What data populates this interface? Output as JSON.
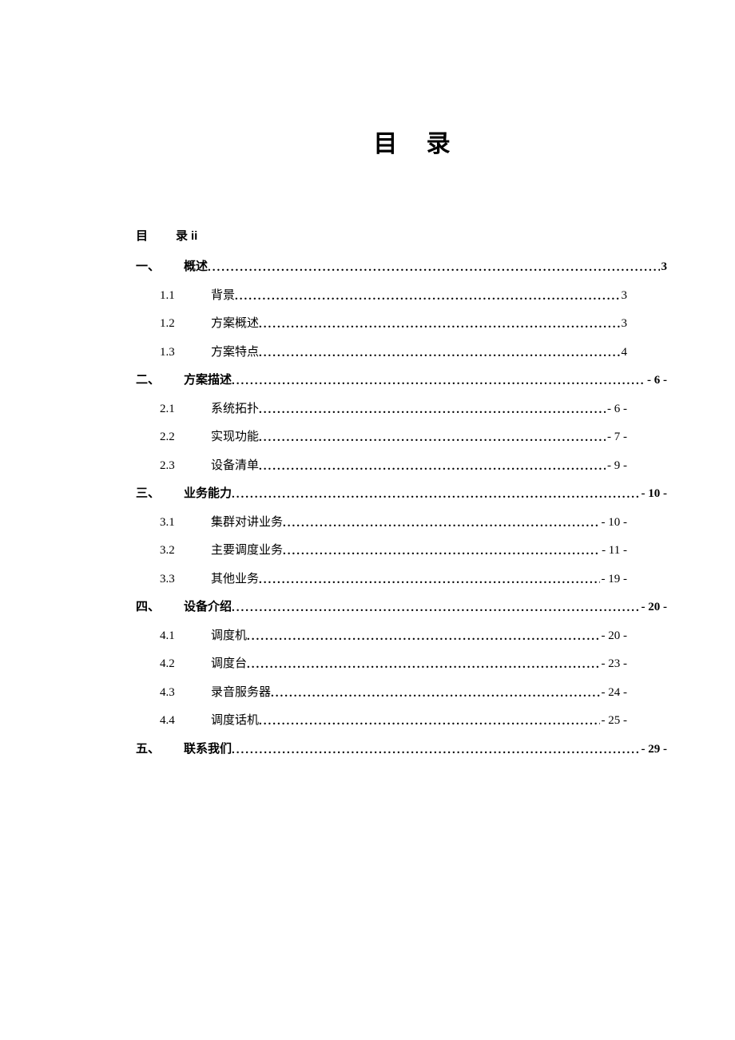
{
  "colors": {
    "background": "#ffffff",
    "text": "#000000"
  },
  "title": "目 录",
  "self_entry": {
    "label": "目　录",
    "page": "ii"
  },
  "toc": [
    {
      "level": 1,
      "num": "一、",
      "text": "概述",
      "page": "3"
    },
    {
      "level": 2,
      "num": "1.1",
      "text": "背景",
      "page": "3"
    },
    {
      "level": 2,
      "num": "1.2",
      "text": "方案概述",
      "page": "3"
    },
    {
      "level": 2,
      "num": "1.3",
      "text": "方案特点",
      "page": "4"
    },
    {
      "level": 1,
      "num": "二、",
      "text": "方案描述",
      "page": "- 6 -"
    },
    {
      "level": 2,
      "num": "2.1",
      "text": "系统拓扑",
      "page": "- 6 -"
    },
    {
      "level": 2,
      "num": "2.2",
      "text": "实现功能",
      "page": "- 7 -"
    },
    {
      "level": 2,
      "num": "2.3",
      "text": "设备清单",
      "page": "- 9 -"
    },
    {
      "level": 1,
      "num": "三、",
      "text": "业务能力",
      "page": "- 10 -"
    },
    {
      "level": 2,
      "num": "3.1",
      "text": "集群对讲业务",
      "page": "- 10 -"
    },
    {
      "level": 2,
      "num": "3.2",
      "text": "主要调度业务",
      "page": "- 11 -"
    },
    {
      "level": 2,
      "num": "3.3",
      "text": "其他业务",
      "page": "- 19 -"
    },
    {
      "level": 1,
      "num": "四、",
      "text": "设备介绍",
      "page": "- 20 -"
    },
    {
      "level": 2,
      "num": "4.1",
      "text": "调度机",
      "page": "- 20 -"
    },
    {
      "level": 2,
      "num": "4.2",
      "text": "调度台",
      "page": "- 23 -"
    },
    {
      "level": 2,
      "num": "4.3",
      "text": "录音服务器",
      "page": "- 24 -"
    },
    {
      "level": 2,
      "num": "4.4",
      "text": "调度话机",
      "page": "- 25 -"
    },
    {
      "level": 1,
      "num": "五、",
      "text": "联系我们",
      "page": "- 29 -"
    }
  ]
}
